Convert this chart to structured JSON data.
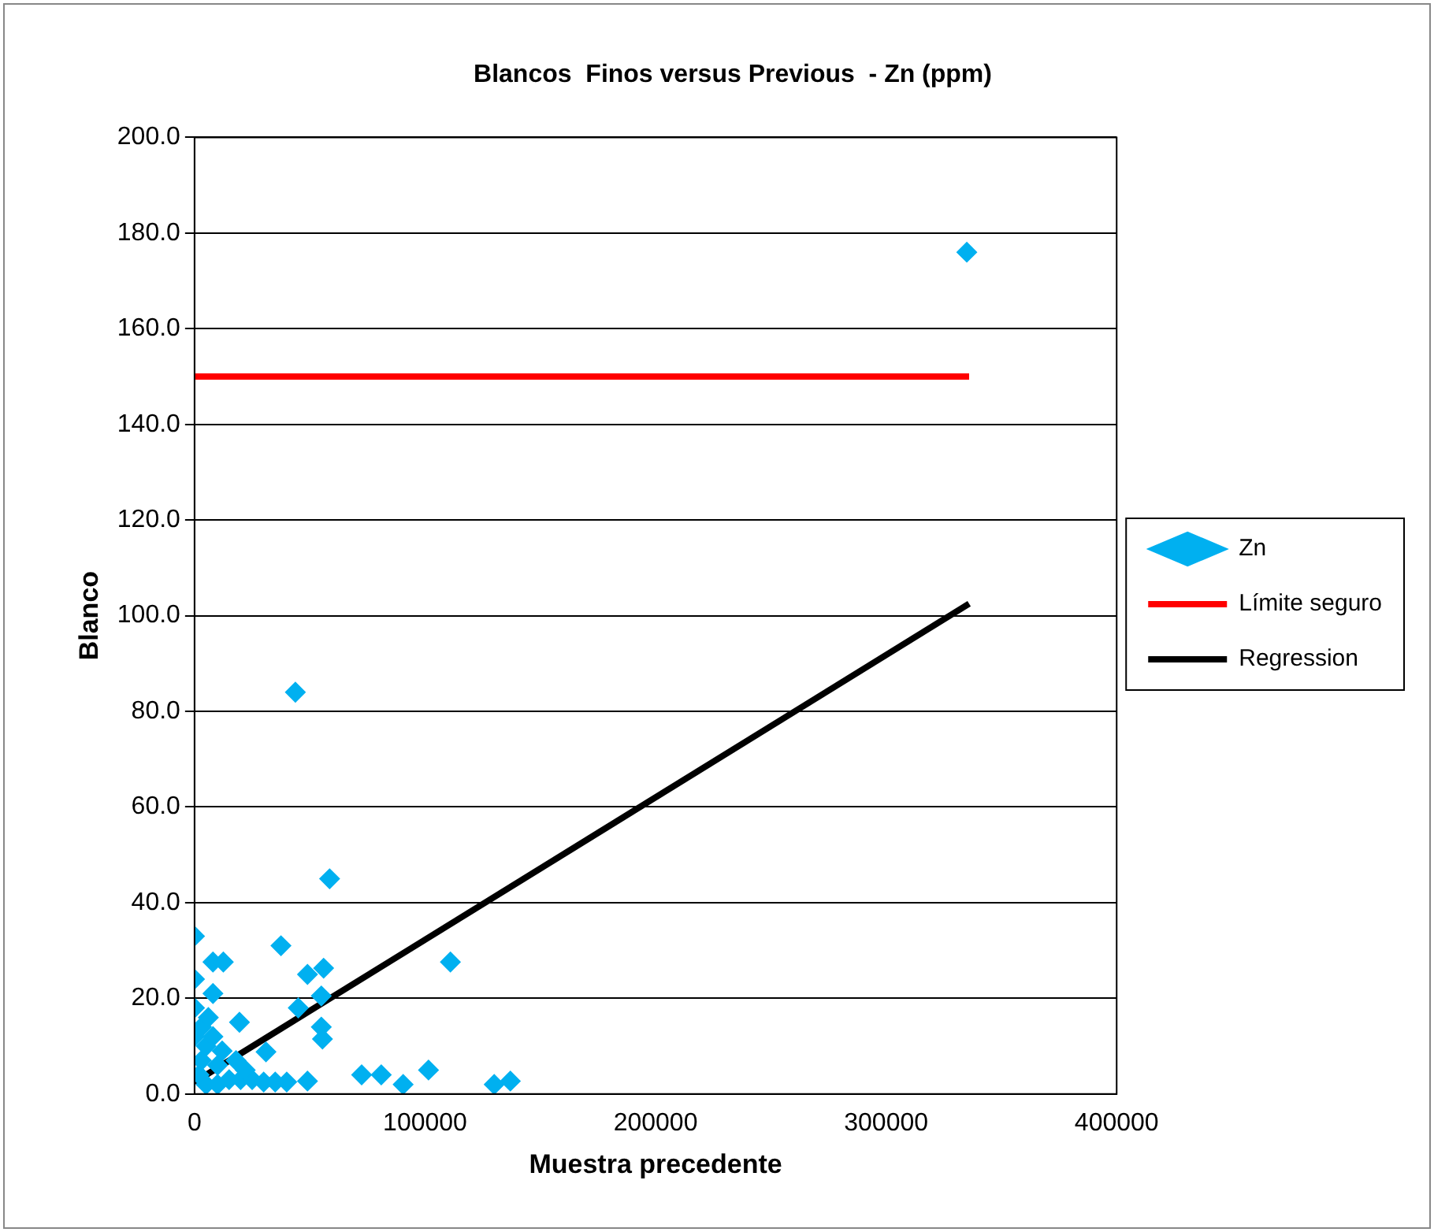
{
  "chart_data": {
    "type": "scatter",
    "title": "Blancos  Finos versus Previous  - Zn (ppm)",
    "xlabel": "Muestra precedente",
    "ylabel": "Blanco",
    "xlim": [
      0,
      400000
    ],
    "xticks": [
      0,
      100000,
      200000,
      300000,
      400000
    ],
    "ylim": [
      0,
      200
    ],
    "yticks": [
      {
        "value": 0,
        "label": "0.0"
      },
      {
        "value": 20,
        "label": "20.0"
      },
      {
        "value": 40,
        "label": "40.0"
      },
      {
        "value": 60,
        "label": "60.0"
      },
      {
        "value": 80,
        "label": "80.0"
      },
      {
        "value": 100,
        "label": "100.0"
      },
      {
        "value": 120,
        "label": "120.0"
      },
      {
        "value": 140,
        "label": "140.0"
      },
      {
        "value": 160,
        "label": "160.0"
      },
      {
        "value": 180,
        "label": "180.0"
      },
      {
        "value": 200,
        "label": "200.0"
      }
    ],
    "grid": "y",
    "legend": "right",
    "marker": "diamond",
    "series": [
      {
        "name": "Zn",
        "color": "#00b0f0",
        "x": [
          335000,
          43750,
          58600,
          0,
          37500,
          111000,
          8000,
          12500,
          49000,
          56000,
          0,
          8000,
          55000,
          45000,
          19500,
          55000,
          55500,
          31000,
          72500,
          81000,
          101500,
          90500,
          130000,
          137000,
          49000,
          0,
          0,
          2000,
          3000,
          5000,
          8000,
          10000,
          15000,
          20000,
          25000,
          30000,
          35000,
          40000,
          12000,
          18000,
          22000,
          5000,
          10000,
          3000,
          6000
        ],
        "values": [
          176,
          84,
          45,
          33,
          31,
          27.6,
          27.6,
          27.6,
          25,
          26.3,
          24,
          21,
          20.5,
          18,
          15,
          14,
          11.5,
          8.8,
          4,
          4,
          5,
          2,
          2,
          2.7,
          2.7,
          12,
          18,
          4,
          7,
          10,
          12,
          6,
          3,
          3,
          3,
          2.5,
          2.5,
          2.5,
          9,
          7,
          5,
          2,
          2,
          14,
          16
        ]
      },
      {
        "name": "Límite seguro",
        "type": "line",
        "marker": "none",
        "color": "#ff0000",
        "x": [
          0,
          336000
        ],
        "values": [
          150,
          150
        ]
      },
      {
        "name": "Regression",
        "type": "line",
        "marker": "none",
        "color": "#000000",
        "x": [
          0,
          336000
        ],
        "values": [
          2.5,
          102.5
        ]
      }
    ]
  }
}
